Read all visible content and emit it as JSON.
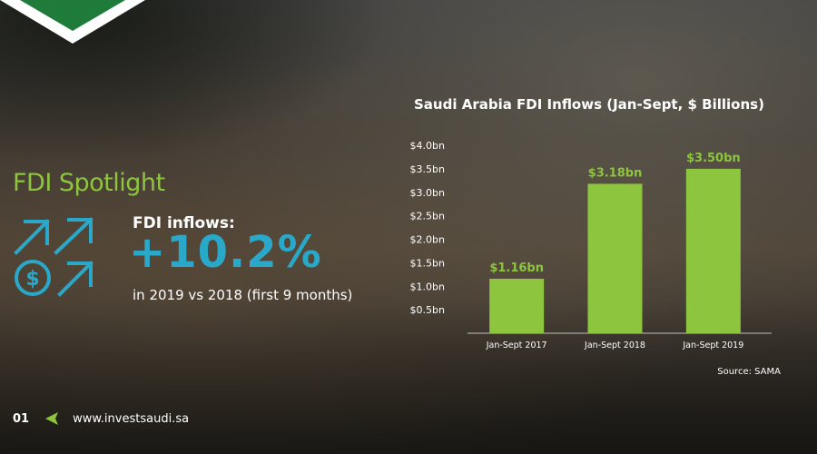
{
  "brand": {
    "accent": "#8dc53e",
    "teal": "#2aa8c9",
    "logo_green": "#1e7b3a"
  },
  "spotlight": {
    "title": "FDI Spotlight",
    "label": "FDI inflows:",
    "value": "+10.2%",
    "note": "in 2019 vs 2018 (first 9 months)",
    "icon": "investment-arrows-icon"
  },
  "chart_data": {
    "type": "bar",
    "title": "Saudi Arabia FDI Inflows (Jan-Sept, $ Billions)",
    "categories": [
      "Jan-Sept 2017",
      "Jan-Sept 2018",
      "Jan-Sept 2019"
    ],
    "values": [
      1.16,
      3.18,
      3.5
    ],
    "data_labels": [
      "$1.16bn",
      "$3.18bn",
      "$3.50bn"
    ],
    "ytick_values": [
      0.5,
      1.0,
      1.5,
      2.0,
      2.5,
      3.0,
      3.5,
      4.0
    ],
    "ytick_labels": [
      "$0.5bn",
      "$1.0bn",
      "$1.5bn",
      "$2.0bn",
      "$2.5bn",
      "$3.0bn",
      "$3.5bn",
      "$4.0bn"
    ],
    "ylim": [
      0,
      4.0
    ],
    "grid": false,
    "bar_color": "#8dc53e",
    "source": "Source: SAMA"
  },
  "footer": {
    "page_number": "01",
    "website": "www.investsaudi.sa",
    "arrow_icon": "back-arrow-icon"
  }
}
